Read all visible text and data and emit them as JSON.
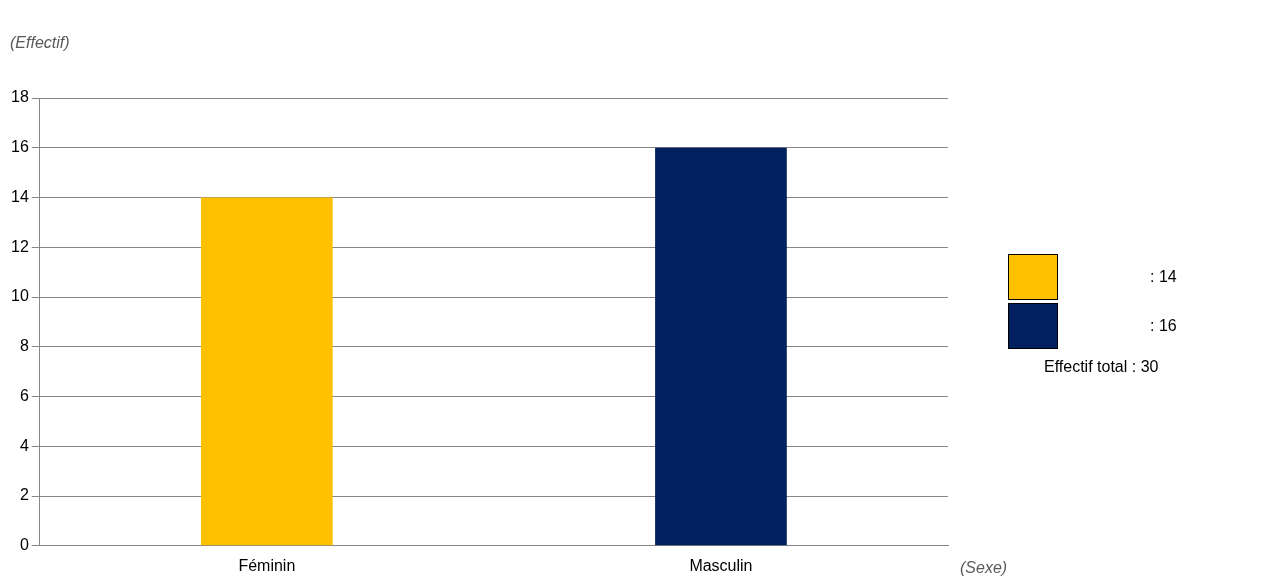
{
  "chart_data": {
    "type": "bar",
    "xlabel": "(Sexe)",
    "ylabel": "(Effectif)",
    "categories": [
      "Féminin",
      "Masculin"
    ],
    "values": [
      14,
      16
    ],
    "colors": [
      "#ffc000",
      "#002060"
    ],
    "ylim": [
      0,
      18
    ],
    "yticks": [
      0,
      2,
      4,
      6,
      8,
      10,
      12,
      14,
      16,
      18
    ],
    "grid": "y",
    "annotations": [
      ": 14",
      ": 16",
      "Effectif total : 30"
    ]
  }
}
